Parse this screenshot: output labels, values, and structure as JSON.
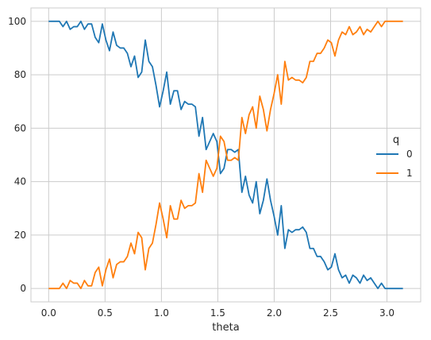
{
  "chart_data": {
    "type": "line",
    "title": "",
    "xlabel": "theta",
    "ylabel": "",
    "xlim": [
      -0.157,
      3.299
    ],
    "ylim": [
      -5,
      105
    ],
    "xticks": [
      0.0,
      0.5,
      1.0,
      1.5,
      2.0,
      2.5,
      3.0
    ],
    "xtick_labels": [
      "0.0",
      "0.5",
      "1.0",
      "1.5",
      "2.0",
      "2.5",
      "3.0"
    ],
    "yticks": [
      0,
      20,
      40,
      60,
      80,
      100
    ],
    "ytick_labels": [
      "0",
      "20",
      "40",
      "60",
      "80",
      "100"
    ],
    "grid": true,
    "legend": {
      "title": "q",
      "placement": "center-right"
    },
    "x": [
      0.0,
      0.0317,
      0.0635,
      0.0952,
      0.1269,
      0.1587,
      0.1904,
      0.2221,
      0.2539,
      0.2856,
      0.3173,
      0.3491,
      0.3808,
      0.4125,
      0.4443,
      0.476,
      0.5077,
      0.5395,
      0.5712,
      0.6029,
      0.6347,
      0.6664,
      0.6981,
      0.7299,
      0.7616,
      0.7933,
      0.8251,
      0.8568,
      0.8885,
      0.9203,
      0.952,
      0.9837,
      1.0155,
      1.0472,
      1.0789,
      1.1107,
      1.1424,
      1.1741,
      1.2059,
      1.2376,
      1.2693,
      1.3011,
      1.3328,
      1.3645,
      1.3963,
      1.428,
      1.4597,
      1.4915,
      1.5232,
      1.5549,
      1.5867,
      1.6184,
      1.6501,
      1.6819,
      1.7136,
      1.7453,
      1.7771,
      1.8088,
      1.8405,
      1.8723,
      1.904,
      1.9357,
      1.9675,
      1.9992,
      2.0309,
      2.0627,
      2.0944,
      2.1261,
      2.1579,
      2.1896,
      2.2213,
      2.2531,
      2.2848,
      2.3165,
      2.3483,
      2.38,
      2.4117,
      2.4435,
      2.4752,
      2.5069,
      2.5387,
      2.5704,
      2.6021,
      2.6339,
      2.6656,
      2.6973,
      2.7291,
      2.7608,
      2.7925,
      2.8243,
      2.856,
      2.8877,
      2.9195,
      2.9512,
      2.9829,
      3.0147,
      3.0464,
      3.0781,
      3.1099,
      3.1416
    ],
    "series": [
      {
        "name": "0",
        "color": "#1f77b4",
        "values": [
          100,
          100,
          100,
          100,
          98,
          100,
          97,
          98,
          98,
          100,
          97,
          99,
          99,
          94,
          92,
          99,
          93,
          89,
          96,
          91,
          90,
          90,
          88,
          83,
          87,
          79,
          81,
          93,
          85,
          83,
          76,
          68,
          74,
          81,
          69,
          74,
          74,
          67,
          70,
          69,
          69,
          68,
          57,
          64,
          52,
          55,
          58,
          55,
          43,
          45,
          52,
          52,
          51,
          52,
          36,
          42,
          35,
          32,
          40,
          28,
          33,
          41,
          33,
          27,
          20,
          31,
          15,
          22,
          21,
          22,
          22,
          23,
          21,
          15,
          15,
          12,
          12,
          10,
          7,
          8,
          13,
          7,
          4,
          5,
          2,
          5,
          4,
          2,
          5,
          3,
          4,
          2,
          0,
          2,
          0,
          0,
          0,
          0,
          0,
          0
        ]
      },
      {
        "name": "1",
        "color": "#ff7f0e",
        "values": [
          0,
          0,
          0,
          0,
          2,
          0,
          3,
          2,
          2,
          0,
          3,
          1,
          1,
          6,
          8,
          1,
          7,
          11,
          4,
          9,
          10,
          10,
          12,
          17,
          13,
          21,
          19,
          7,
          15,
          17,
          24,
          32,
          26,
          19,
          31,
          26,
          26,
          33,
          30,
          31,
          31,
          32,
          43,
          36,
          48,
          45,
          42,
          45,
          57,
          55,
          48,
          48,
          49,
          48,
          64,
          58,
          65,
          68,
          60,
          72,
          67,
          59,
          67,
          73,
          80,
          69,
          85,
          78,
          79,
          78,
          78,
          77,
          79,
          85,
          85,
          88,
          88,
          90,
          93,
          92,
          87,
          93,
          96,
          95,
          98,
          95,
          96,
          98,
          95,
          97,
          96,
          98,
          100,
          98,
          100,
          100,
          100,
          100,
          100,
          100
        ]
      }
    ]
  }
}
